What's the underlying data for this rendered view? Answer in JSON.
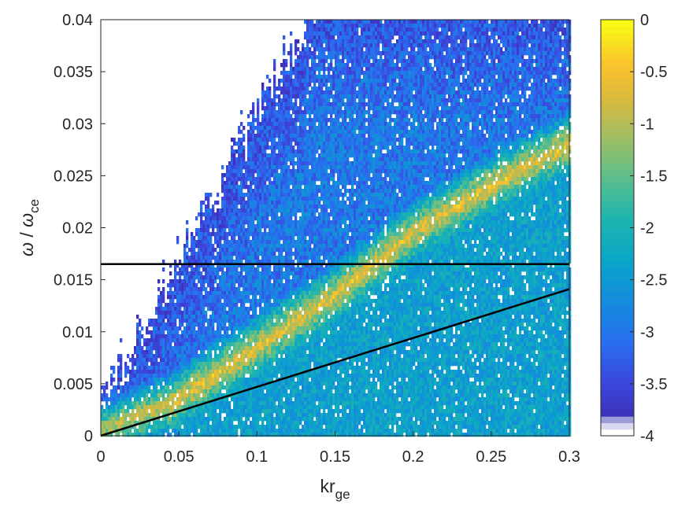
{
  "chart_data": {
    "type": "heatmap",
    "title": "",
    "xlabel": {
      "main": "kr",
      "sub": "ge"
    },
    "ylabel": {
      "omega": "ω",
      "slash": " / ",
      "omega_ce": "ω",
      "sub": "ce"
    },
    "xlim": [
      0,
      0.3
    ],
    "ylim": [
      0,
      0.04
    ],
    "x_ticks": [
      "0",
      "0.05",
      "0.1",
      "0.15",
      "0.2",
      "0.25",
      "0.3"
    ],
    "x_tick_values": [
      0,
      0.05,
      0.1,
      0.15,
      0.2,
      0.25,
      0.3
    ],
    "y_ticks": [
      "0",
      "0.005",
      "0.01",
      "0.015",
      "0.02",
      "0.025",
      "0.03",
      "0.035",
      "0.04"
    ],
    "y_tick_values": [
      0,
      0.005,
      0.01,
      0.015,
      0.02,
      0.025,
      0.03,
      0.035,
      0.04
    ],
    "colorbar": {
      "range": [
        -4,
        0
      ],
      "ticks": [
        "0",
        "-0.5",
        "-1",
        "-1.5",
        "-2",
        "-2.5",
        "-3",
        "-3.5",
        "-4"
      ],
      "tick_values": [
        0,
        -0.5,
        -1,
        -1.5,
        -2,
        -2.5,
        -3,
        -3.5,
        -4
      ],
      "colormap": "parula"
    },
    "ridge": {
      "description_points_x": [
        0,
        0.05,
        0.1,
        0.15,
        0.2,
        0.25,
        0.3
      ],
      "description_points_y": [
        0.0005,
        0.0035,
        0.0085,
        0.0135,
        0.0195,
        0.024,
        0.028
      ]
    },
    "lines": [
      {
        "x": [
          0,
          0.3
        ],
        "y": [
          0.0165,
          0.0165
        ],
        "color": "#000000"
      },
      {
        "x": [
          0,
          0.3
        ],
        "y": [
          0,
          0.0141
        ],
        "color": "#000000"
      }
    ],
    "grid": false
  }
}
